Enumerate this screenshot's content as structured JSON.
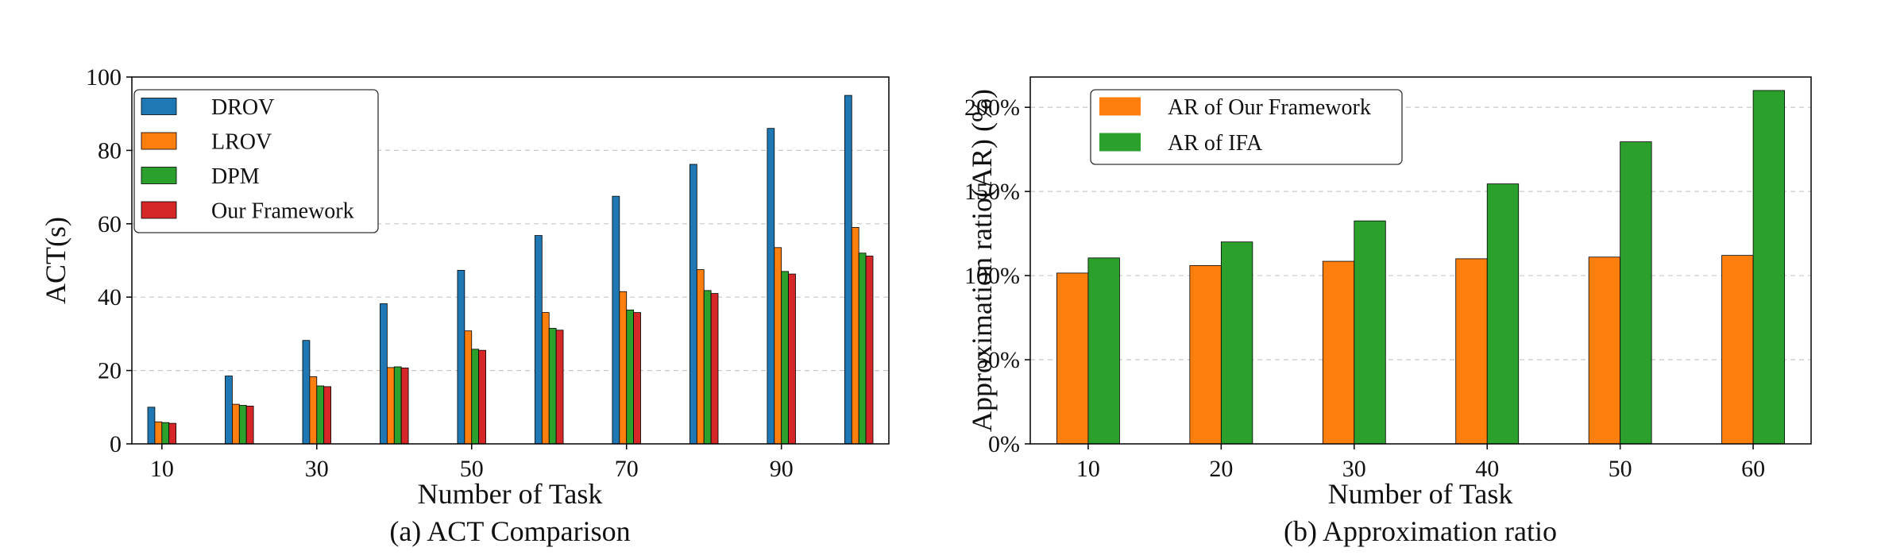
{
  "chart_data": [
    {
      "type": "bar",
      "caption": "(a) ACT Comparison",
      "xlabel": "Number of Task",
      "ylabel": "ACT(s)",
      "ylim": [
        0,
        100
      ],
      "yticks": [
        0,
        20,
        40,
        60,
        80,
        100
      ],
      "xticks": [
        "10",
        "30",
        "50",
        "70",
        "90"
      ],
      "categories": [
        "10",
        "20",
        "30",
        "40",
        "50",
        "60",
        "70",
        "80",
        "90",
        "100"
      ],
      "grid": "horizontal dashed",
      "legend_position": "top-left",
      "series": [
        {
          "name": "DROV",
          "color": "#1f77b4",
          "values": [
            10,
            18.5,
            28.2,
            38.2,
            47.3,
            56.8,
            67.5,
            76.2,
            86,
            95
          ]
        },
        {
          "name": "LROV",
          "color": "#ff7f0e",
          "values": [
            6,
            10.8,
            18.3,
            20.8,
            30.8,
            35.8,
            41.5,
            47.5,
            53.5,
            59
          ]
        },
        {
          "name": "DPM",
          "color": "#2ca02c",
          "values": [
            5.8,
            10.5,
            15.8,
            21,
            25.8,
            31.5,
            36.5,
            41.8,
            47,
            52
          ]
        },
        {
          "name": "Our Framework",
          "color": "#d62728",
          "values": [
            5.6,
            10.3,
            15.6,
            20.7,
            25.5,
            31,
            35.8,
            41,
            46.3,
            51.2
          ]
        }
      ]
    },
    {
      "type": "bar",
      "caption": "(b) Approximation ratio",
      "xlabel": "Number of Task",
      "ylabel": "Approximation ratio(AR) (%)",
      "ylim": [
        0,
        218
      ],
      "yticks": [
        0,
        50,
        100,
        150,
        200
      ],
      "ytick_labels": [
        "0%",
        "50%",
        "100%",
        "150%",
        "200%"
      ],
      "categories": [
        "10",
        "20",
        "30",
        "40",
        "50",
        "60"
      ],
      "grid": "horizontal dashed",
      "legend_position": "top-left",
      "series": [
        {
          "name": "AR of Our Framework",
          "color": "#ff7f0e",
          "values": [
            101.5,
            106,
            108.5,
            110,
            111,
            112
          ]
        },
        {
          "name": "AR of IFA",
          "color": "#2ca02c",
          "values": [
            110.5,
            120,
            132.5,
            154.5,
            179.5,
            210
          ]
        }
      ]
    }
  ]
}
